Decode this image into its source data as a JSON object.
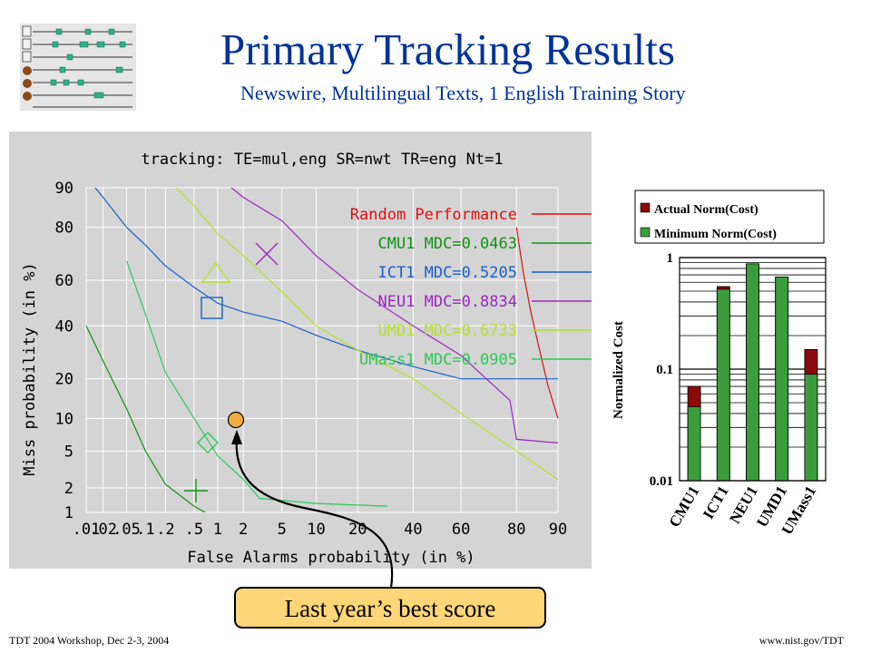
{
  "slide": {
    "title": "Primary Tracking Results",
    "subtitle": "Newswire, Multilingual Texts, 1 English Training Story",
    "footer_left": "TDT 2004 Workshop, Dec 2-3, 2004",
    "footer_right": "www.nist.gov/TDT",
    "callout": "Last year’s best score",
    "icon": "timeline-stories-icon"
  },
  "chart_data": [
    {
      "type": "line",
      "title": "tracking: TE=mul,eng SR=nwt TR=eng Nt=1",
      "xlabel": "False Alarms probability (in %)",
      "ylabel": "Miss probability (in %)",
      "x_ticks": [
        ".01",
        ".02",
        ".05",
        ".1",
        ".2",
        ".5",
        "1",
        "2",
        "5",
        "10",
        "20",
        "40",
        "60",
        "80",
        "90"
      ],
      "y_ticks": [
        "1",
        "2",
        "5",
        "10",
        "20",
        "40",
        "60",
        "80",
        "90"
      ],
      "scale": "normal-deviate",
      "grid": true,
      "legend_position": "top-right",
      "series": [
        {
          "name": "Random Performance",
          "color": "#dd1010",
          "x": [
            80,
            82,
            84,
            86,
            88,
            90
          ],
          "y": [
            80,
            63,
            46,
            31,
            18,
            10
          ]
        },
        {
          "name": "CMU1 MDC=0.0463",
          "color": "#149014",
          "x": [
            0.01,
            0.02,
            0.05,
            0.1,
            0.2,
            0.5,
            0.7
          ],
          "y": [
            40,
            26,
            12,
            5,
            2.2,
            1.2,
            1
          ]
        },
        {
          "name": "ICT1 MDC=0.5205",
          "color": "#1a60c8",
          "x": [
            0.01,
            0.02,
            0.05,
            0.1,
            0.2,
            0.5,
            1,
            2,
            5,
            10,
            20,
            40,
            60,
            80,
            90
          ],
          "y": [
            92,
            88,
            80,
            74,
            66,
            57,
            50,
            46,
            42,
            36,
            30,
            24,
            20,
            20,
            20
          ]
        },
        {
          "name": "NEU1 MDC=0.8834",
          "color": "#9a28c0",
          "x": [
            1,
            2,
            5,
            10,
            20,
            40,
            60,
            78,
            80,
            90
          ],
          "y": [
            92,
            88,
            82,
            70,
            56,
            40,
            28,
            14,
            6.5,
            6
          ]
        },
        {
          "name": "UMD1 MDC=0.6733",
          "color": "#b4e02c",
          "x": [
            0.2,
            0.5,
            1,
            2,
            5,
            10,
            20,
            40,
            60,
            80,
            90
          ],
          "y": [
            92,
            86,
            78,
            70,
            55,
            40,
            30,
            20,
            11,
            5,
            2.5
          ]
        },
        {
          "name": "UMass1 MDC=0.0905",
          "color": "#2cc85a",
          "x": [
            0.05,
            0.1,
            0.2,
            0.5,
            1,
            2,
            3,
            10,
            30
          ],
          "y": [
            68,
            45,
            22,
            10,
            4.5,
            2.5,
            1.5,
            1.3,
            1.2
          ]
        }
      ],
      "markers": [
        {
          "label": "Last year’s best score",
          "x": 1.5,
          "y": 9,
          "color": "#f0ae40"
        }
      ]
    },
    {
      "type": "bar",
      "ylabel": "Normalized Cost",
      "yscale": "log",
      "ylim": [
        0.01,
        1
      ],
      "y_ticks": [
        "1",
        "0.1",
        "0.01"
      ],
      "legend_position": "top",
      "categories": [
        "CMU1",
        "ICT1",
        "NEU1",
        "UMD1",
        "UMass1"
      ],
      "series": [
        {
          "name": "Actual Norm(Cost)",
          "color": "#8b0a0a",
          "values": [
            0.07,
            0.55,
            0.86,
            0.67,
            0.15
          ]
        },
        {
          "name": "Minimum Norm(Cost)",
          "color": "#3a9c3a",
          "values": [
            0.046,
            0.52,
            0.88,
            0.67,
            0.09
          ]
        }
      ]
    }
  ]
}
